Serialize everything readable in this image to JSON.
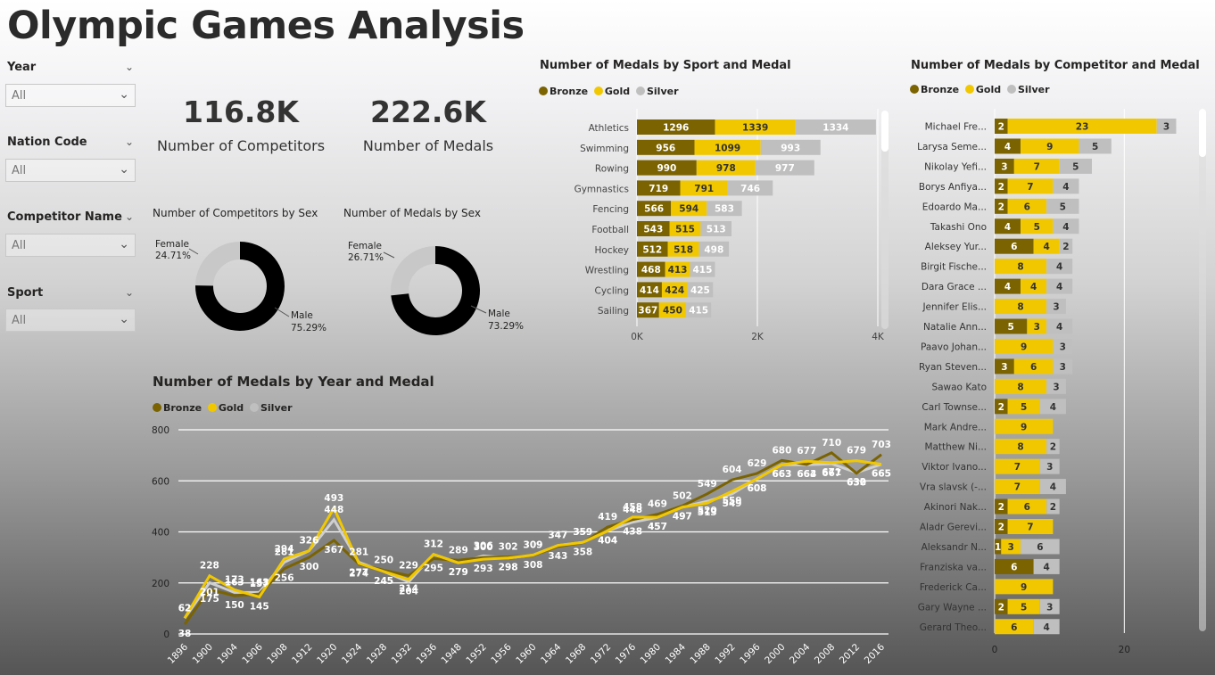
{
  "title": "Olympic Games Analysis",
  "slicers": [
    {
      "label": "Year",
      "value": "All"
    },
    {
      "label": "Nation Code",
      "value": "All"
    },
    {
      "label": "Competitor Name",
      "value": "All"
    },
    {
      "label": "Sport",
      "value": "All"
    }
  ],
  "kpis": {
    "competitors": {
      "value": "116.8K",
      "label": "Number of Competitors"
    },
    "medals": {
      "value": "222.6K",
      "label": "Number of Medals"
    }
  },
  "colors": {
    "bronze": "#7a6300",
    "gold": "#f1c800",
    "silver": "#bfbfbf",
    "donut_male": "#000000",
    "donut_female": "#c8c8c8"
  },
  "legend": [
    "Bronze",
    "Gold",
    "Silver"
  ],
  "chart_data": [
    {
      "id": "competitors_by_sex",
      "type": "pie",
      "title": "Number of Competitors by Sex",
      "slices": [
        {
          "name": "Female",
          "pct_label": "24.71%",
          "value": 24.71
        },
        {
          "name": "Male",
          "pct_label": "75.29%",
          "value": 75.29
        }
      ]
    },
    {
      "id": "medals_by_sex",
      "type": "pie",
      "title": "Number of Medals by Sex",
      "slices": [
        {
          "name": "Female",
          "pct_label": "26.71%",
          "value": 26.71
        },
        {
          "name": "Male",
          "pct_label": "73.29%",
          "value": 73.29
        }
      ]
    },
    {
      "id": "medals_by_sport",
      "type": "bar",
      "title": "Number of Medals by Sport and Medal",
      "categories": [
        "Athletics",
        "Swimming",
        "Rowing",
        "Gymnastics",
        "Fencing",
        "Football",
        "Hockey",
        "Wrestling",
        "Cycling",
        "Sailing"
      ],
      "series": [
        {
          "name": "Bronze",
          "values": [
            1296,
            956,
            990,
            719,
            566,
            543,
            512,
            468,
            414,
            367
          ]
        },
        {
          "name": "Gold",
          "values": [
            1339,
            1099,
            978,
            791,
            594,
            515,
            518,
            413,
            424,
            450
          ]
        },
        {
          "name": "Silver",
          "values": [
            1334,
            993,
            977,
            746,
            583,
            513,
            498,
            415,
            425,
            415
          ]
        }
      ],
      "xlim": [
        0,
        4000
      ],
      "x_ticks": [
        "0K",
        "2K",
        "4K"
      ]
    },
    {
      "id": "medals_by_competitor",
      "type": "bar",
      "title": "Number of Medals by Competitor and Medal",
      "categories": [
        "Michael Fre...",
        "Larysa Seme...",
        "Nikolay Yefi...",
        "Borys Anfiya...",
        "Edoardo Ma...",
        "Takashi Ono",
        "Aleksey Yur...",
        "Birgit Fische...",
        "Dara Grace ...",
        "Jennifer Elis...",
        "Natalie Ann...",
        "Paavo Johan...",
        "Ryan Steven...",
        "Sawao Kato",
        "Carl Townse...",
        "Mark Andre...",
        "Matthew Ni...",
        "Viktor Ivano...",
        "Vra slavsk (-...",
        "Akinori Nak...",
        "Aladr Gerevi...",
        "Aleksandr N...",
        "Franziska va...",
        "Frederick Ca...",
        "Gary Wayne ...",
        "Gerard Theo..."
      ],
      "series": [
        {
          "name": "Bronze",
          "values": [
            2,
            4,
            3,
            2,
            2,
            4,
            6,
            0,
            4,
            0,
            5,
            0,
            3,
            0,
            2,
            0,
            0,
            0,
            0,
            2,
            2,
            1,
            6,
            0,
            2,
            0
          ]
        },
        {
          "name": "Gold",
          "values": [
            23,
            9,
            7,
            7,
            6,
            5,
            4,
            8,
            4,
            8,
            3,
            9,
            6,
            8,
            5,
            9,
            8,
            7,
            7,
            6,
            7,
            3,
            0,
            9,
            5,
            6
          ]
        },
        {
          "name": "Silver",
          "values": [
            3,
            5,
            5,
            4,
            5,
            4,
            2,
            4,
            4,
            3,
            4,
            3,
            3,
            3,
            4,
            0,
            2,
            3,
            4,
            2,
            0,
            6,
            4,
            0,
            3,
            4
          ]
        }
      ],
      "xlim": [
        0,
        30
      ],
      "x_ticks": [
        "0",
        "20"
      ]
    },
    {
      "id": "medals_by_year",
      "type": "line",
      "title": "Number of Medals by Year and Medal",
      "x": [
        "1896",
        "1900",
        "1904",
        "1906",
        "1908",
        "1912",
        "1920",
        "1924",
        "1928",
        "1932",
        "1936",
        "1948",
        "1952",
        "1956",
        "1960",
        "1964",
        "1968",
        "1972",
        "1976",
        "1980",
        "1984",
        "1988",
        "1992",
        "1996",
        "2000",
        "2004",
        "2008",
        "2012",
        "2016"
      ],
      "series": [
        {
          "name": "Bronze",
          "values": [
            38,
            175,
            150,
            157,
            256,
            300,
            367,
            274,
            250,
            229,
            295,
            289,
            300,
            302,
            308,
            343,
            358,
            419,
            448,
            469,
            502,
            549,
            604,
            629,
            680,
            664,
            710,
            630,
            703
          ]
        },
        {
          "name": "Gold",
          "values": [
            62,
            228,
            173,
            145,
            294,
            326,
            493,
            277,
            245,
            214,
            312,
            279,
            293,
            298,
            309,
            347,
            359,
            404,
            458,
            457,
            497,
            513,
            559,
            608,
            663,
            677,
            671,
            679,
            665
          ]
        },
        {
          "name": "Silver",
          "values": [
            62,
            201,
            163,
            163,
            281,
            326,
            448,
            281,
            245,
            204,
            312,
            279,
            306,
            298,
            309,
            347,
            359,
            404,
            438,
            457,
            497,
            520,
            549,
            608,
            663,
            663,
            667,
            632,
            665
          ]
        }
      ],
      "ylim": [
        0,
        800
      ],
      "y_ticks": [
        0,
        200,
        400,
        600,
        800
      ]
    }
  ]
}
